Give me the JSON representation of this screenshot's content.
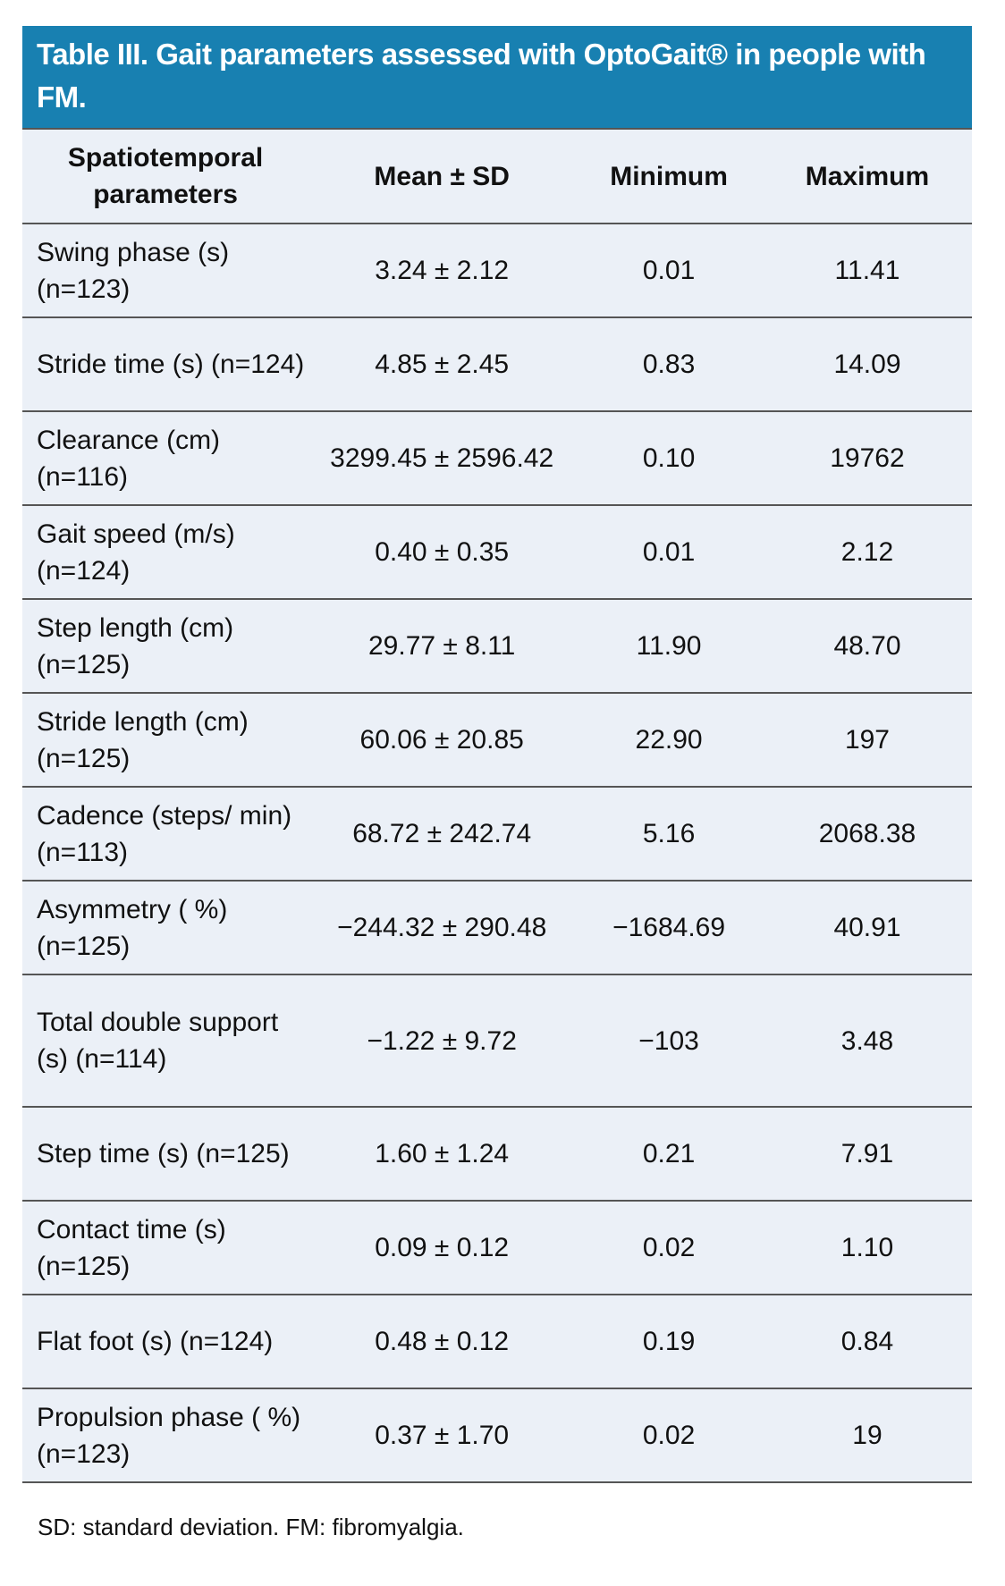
{
  "title": "Table III. Gait parameters assessed with OptoGait® in people with FM.",
  "colors": {
    "header_bg": "#1880b1",
    "row_bg": "#ebf0f7"
  },
  "columns": [
    "Spatiotemporal parameters",
    "Mean ± SD",
    "Minimum",
    "Maximum"
  ],
  "rows": [
    {
      "param": "Swing phase (s) (n=123)",
      "mean_sd": "3.24 ± 2.12",
      "min": "0.01",
      "max": "11.41"
    },
    {
      "param": "Stride time (s) (n=124)",
      "mean_sd": "4.85 ± 2.45",
      "min": "0.83",
      "max": "14.09"
    },
    {
      "param": "Clearance (cm) (n=116)",
      "mean_sd": "3299.45 ± 2596.42",
      "min": "0.10",
      "max": "19762"
    },
    {
      "param": "Gait speed (m/s) (n=124)",
      "mean_sd": "0.40 ± 0.35",
      "min": "0.01",
      "max": "2.12"
    },
    {
      "param": "Step length (cm) (n=125)",
      "mean_sd": "29.77 ± 8.11",
      "min": "11.90",
      "max": "48.70"
    },
    {
      "param": "Stride length (cm) (n=125)",
      "mean_sd": "60.06 ± 20.85",
      "min": "22.90",
      "max": "197"
    },
    {
      "param": "Cadence (steps/ min) (n=113)",
      "mean_sd": "68.72 ± 242.74",
      "min": "5.16",
      "max": "2068.38"
    },
    {
      "param": "Asymmetry ( %) (n=125)",
      "mean_sd": "−244.32 ± 290.48",
      "min": "−1684.69",
      "max": "40.91"
    },
    {
      "param": "Total double support (s) (n=114)",
      "mean_sd": "−1.22 ± 9.72",
      "min": "−103",
      "max": "3.48"
    },
    {
      "param": "Step time (s) (n=125)",
      "mean_sd": "1.60 ± 1.24",
      "min": "0.21",
      "max": "7.91"
    },
    {
      "param": "Contact time (s) (n=125)",
      "mean_sd": "0.09 ± 0.12",
      "min": "0.02",
      "max": "1.10"
    },
    {
      "param": "Flat foot (s) (n=124)",
      "mean_sd": "0.48 ± 0.12",
      "min": "0.19",
      "max": "0.84"
    },
    {
      "param": "Propulsion phase ( %) (n=123)",
      "mean_sd": "0.37 ± 1.70",
      "min": "0.02",
      "max": "19"
    }
  ],
  "footnote": "SD: standard deviation. FM: fibromyalgia."
}
